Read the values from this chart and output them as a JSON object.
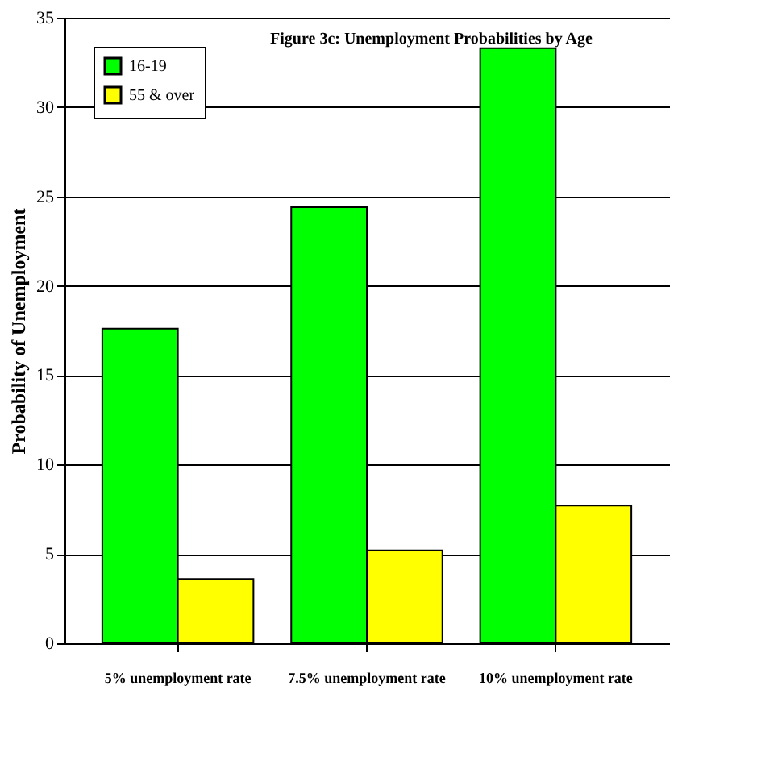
{
  "chart_data": {
    "type": "bar",
    "title": "Figure 3c: Unemployment Probabilities by Age",
    "ylabel": "Probability of Unemployment",
    "categories": [
      "5%  unemployment rate",
      "7.5% unemployment rate",
      "10% unemployment rate"
    ],
    "series": [
      {
        "name": "16-19",
        "color": "#00ff00",
        "values": [
          17.6,
          24.4,
          33.3
        ]
      },
      {
        "name": "55 & over",
        "color": "#ffff00",
        "values": [
          3.6,
          5.2,
          7.7
        ]
      }
    ],
    "ylim": [
      0,
      35
    ],
    "yticks": [
      0,
      5,
      10,
      15,
      20,
      25,
      30,
      35
    ],
    "grid": "y",
    "legend": "top left"
  }
}
